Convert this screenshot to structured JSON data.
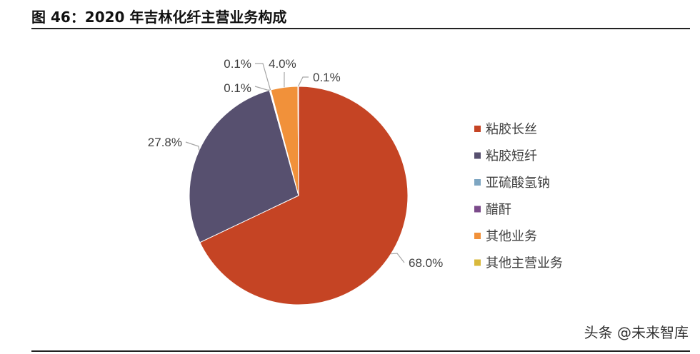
{
  "header": {
    "title": "图 46：2020 年吉林化纤主营业务构成"
  },
  "watermark": "头条 @未来智库",
  "colors": {
    "slice_0": "#c54424",
    "slice_1": "#57506f",
    "slice_2": "#7ea6c2",
    "slice_3": "#7b4a8a",
    "slice_4": "#f1913a",
    "slice_5": "#d9b93c"
  },
  "chart_data": {
    "type": "pie",
    "title": "",
    "legend_position": "right",
    "slices": [
      {
        "label": "粘胶长丝",
        "value": 68.0,
        "display": "68.0%"
      },
      {
        "label": "粘胶短纤",
        "value": 27.8,
        "display": "27.8%"
      },
      {
        "label": "亚硫酸氢钠",
        "value": 0.1,
        "display": "0.1%"
      },
      {
        "label": "醋酐",
        "value": 0.1,
        "display": "0.1%"
      },
      {
        "label": "其他业务",
        "value": 4.0,
        "display": "4.0%"
      },
      {
        "label": "其他主营业务",
        "value": 0.1,
        "display": "0.1%"
      }
    ]
  }
}
